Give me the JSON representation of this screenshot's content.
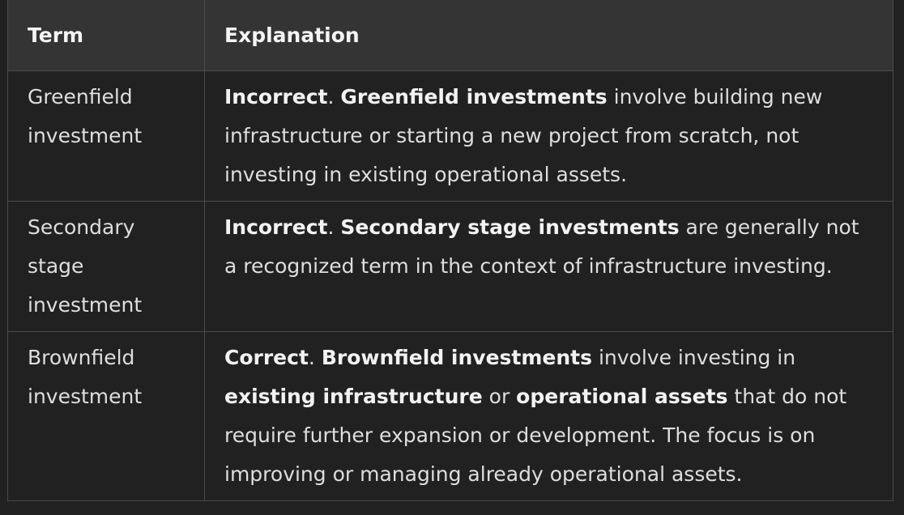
{
  "table": {
    "headers": {
      "term": "Term",
      "explanation": "Explanation"
    },
    "rows": [
      {
        "term": "Greenfield investment",
        "verdict": "Incorrect",
        "punct": ". ",
        "subject": "Greenfield investments",
        "rest": " involve building new infrastructure or starting a new project from scratch, not investing in existing operational assets."
      },
      {
        "term": "Secondary stage investment",
        "verdict": "Incorrect",
        "punct": ". ",
        "subject": "Secondary stage investments",
        "rest": " are generally not a recognized term in the context of infrastructure investing."
      },
      {
        "term": "Brownfield investment",
        "verdict": "Correct",
        "punct": ". ",
        "subject": "Brownfield investments",
        "rest_a": " involve investing in ",
        "bold_b": "existing infrastructure",
        "rest_b": " or ",
        "bold_c": "operational assets",
        "rest_c": " that do not require further expansion or development. The focus is on improving or managing already operational assets."
      }
    ]
  },
  "colors": {
    "background": "#212121",
    "header_background": "#343434",
    "border": "#4a4a4a",
    "text": "#ececec"
  }
}
